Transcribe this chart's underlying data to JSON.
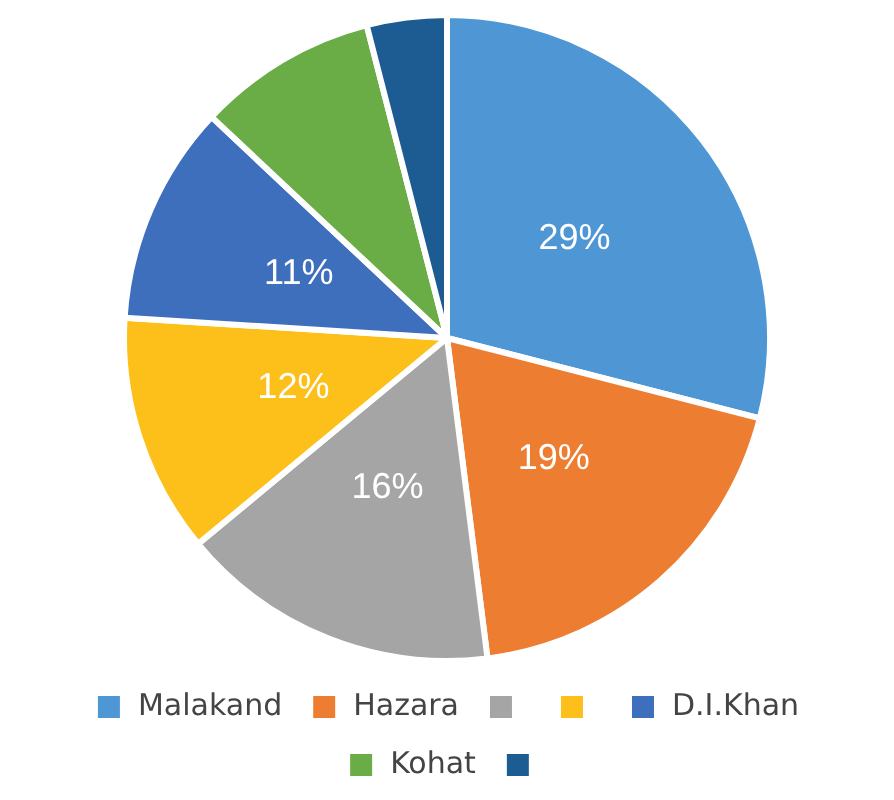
{
  "chart_data": {
    "type": "pie",
    "categories": [
      "Malakand",
      "Hazara",
      null,
      null,
      "D.I.Khan",
      "Kohat",
      null
    ],
    "values": [
      29,
      19,
      16,
      12,
      11,
      9,
      4
    ],
    "colors": [
      "#4e97d4",
      "#ed7d31",
      "#a5a5a5",
      "#fdc01a",
      "#3d6fbd",
      "#6aac46",
      "#1d5b93"
    ],
    "value_labels": [
      "29%",
      "19%",
      "16%",
      "12%",
      "11%",
      null,
      null
    ],
    "legend": "bottom"
  }
}
